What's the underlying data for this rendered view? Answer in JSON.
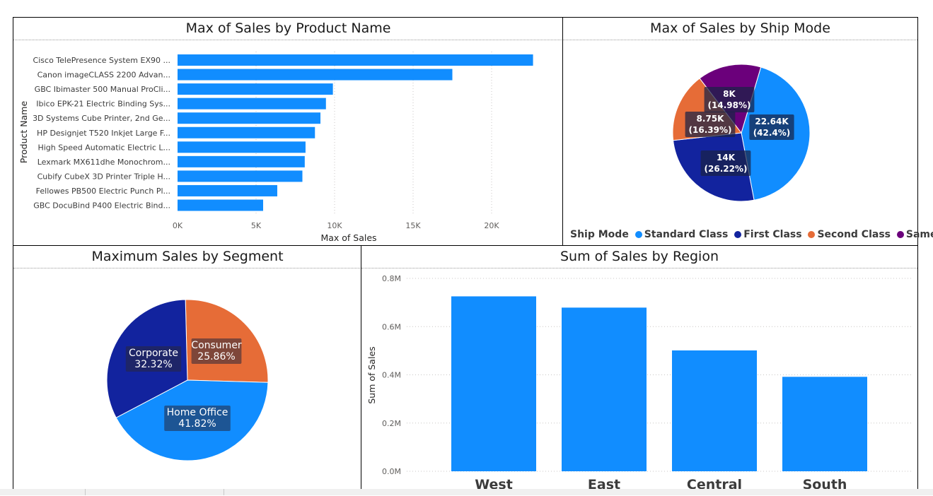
{
  "colors": {
    "bar": "#118dff",
    "standard": "#118dff",
    "first": "#12239e",
    "second": "#e66c37",
    "same_day": "#6b007b",
    "corporate": "#12239e",
    "consumer": "#e66c37",
    "home_office": "#118dff"
  },
  "panels": {
    "product": {
      "title": "Max of Sales by Product Name"
    },
    "shipmode": {
      "title": "Max of Sales by Ship Mode"
    },
    "segment": {
      "title": "Maximum Sales by Segment"
    },
    "region": {
      "title": "Sum of Sales by Region"
    }
  },
  "chart_data": [
    {
      "type": "bar",
      "orientation": "horizontal",
      "title": "Max of Sales by Product Name",
      "xlabel": "Max of Sales",
      "ylabel": "Product Name",
      "categories": [
        "Cisco TelePresence System EX90 ...",
        "Canon imageCLASS 2200 Advan...",
        "GBC Ibimaster 500 Manual ProCli...",
        "Ibico EPK-21 Electric Binding Sys...",
        "3D Systems Cube Printer, 2nd Ge...",
        "HP Designjet T520 Inkjet Large F...",
        "High Speed Automatic Electric L...",
        "Lexmark MX611dhe Monochrom...",
        "Cubify CubeX 3D Printer Triple H...",
        "Fellowes PB500 Electric Punch Pl...",
        "GBC DocuBind P400 Electric Bind..."
      ],
      "values": [
        22638,
        17500,
        9893,
        9450,
        9100,
        8750,
        8150,
        8100,
        7950,
        6350,
        5450
      ],
      "xlim": [
        0,
        25000
      ],
      "xticks": [
        0,
        5000,
        10000,
        15000,
        20000
      ],
      "xtick_labels": [
        "0K",
        "5K",
        "10K",
        "15K",
        "20K"
      ],
      "grid": true
    },
    {
      "type": "pie",
      "title": "Max of Sales by Ship Mode",
      "legend_title": "Ship Mode",
      "legend_position": "bottom",
      "slices": [
        {
          "name": "Standard Class",
          "value_label": "22.64K",
          "pct_label": "(42.4%)",
          "pct": 42.4
        },
        {
          "name": "First Class",
          "value_label": "14K",
          "pct_label": "(26.22%)",
          "pct": 26.22
        },
        {
          "name": "Second Class",
          "value_label": "8.75K",
          "pct_label": "(16.39%)",
          "pct": 16.39
        },
        {
          "name": "Same Day",
          "value_label": "8K",
          "pct_label": "(14.98%)",
          "pct": 14.98
        }
      ]
    },
    {
      "type": "pie",
      "title": "Maximum Sales by Segment",
      "slices": [
        {
          "name": "Consumer",
          "pct_label": "25.86%",
          "pct": 25.86
        },
        {
          "name": "Home Office",
          "pct_label": "41.82%",
          "pct": 41.82
        },
        {
          "name": "Corporate",
          "pct_label": "32.32%",
          "pct": 32.32
        }
      ]
    },
    {
      "type": "bar",
      "orientation": "vertical",
      "title": "Sum of Sales by Region",
      "ylabel": "Sum of Sales",
      "categories": [
        "West",
        "East",
        "Central",
        "South"
      ],
      "values": [
        725458,
        678781,
        501240,
        391722
      ],
      "ylim": [
        0,
        0.8
      ],
      "yunit": "M",
      "yticks": [
        0,
        0.2,
        0.4,
        0.6,
        0.8
      ],
      "ytick_labels": [
        "0.0M",
        "0.2M",
        "0.4M",
        "0.6M",
        "0.8M"
      ],
      "grid": true
    }
  ]
}
